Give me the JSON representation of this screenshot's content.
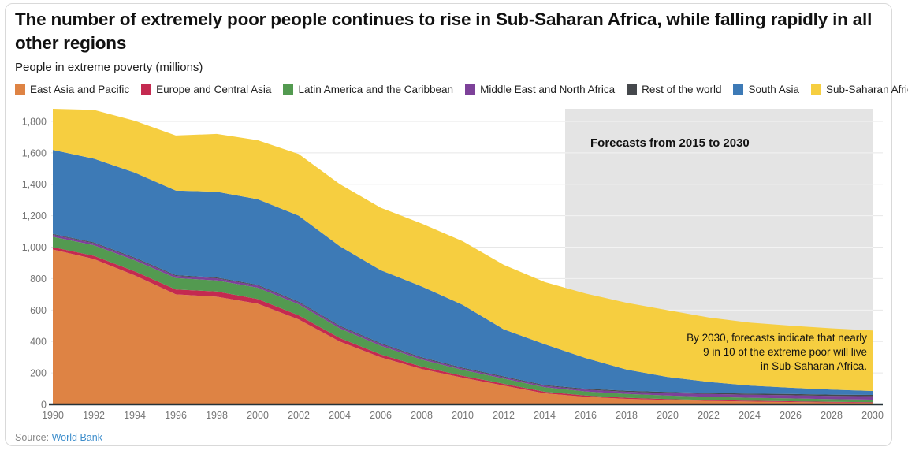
{
  "header": {
    "title": "The number of extremely poor people continues to rise in Sub-Saharan Africa, while falling rapidly in all other regions",
    "subtitle": "People in extreme poverty (millions)"
  },
  "footer": {
    "source_label": "Source:",
    "source_link": "World Bank"
  },
  "chart_data": {
    "type": "area",
    "stacked": true,
    "title": "The number of extremely poor people continues to rise in Sub-Saharan Africa, while falling rapidly in all other regions",
    "ylabel": "People in extreme poverty (millions)",
    "xlabel": "",
    "x": [
      1990,
      1992,
      1994,
      1996,
      1998,
      2000,
      2002,
      2004,
      2006,
      2008,
      2010,
      2012,
      2014,
      2016,
      2018,
      2020,
      2022,
      2024,
      2026,
      2028,
      2030
    ],
    "x_tick_labels": [
      "1990",
      "1992",
      "1994",
      "1996",
      "1998",
      "2000",
      "2002",
      "2004",
      "2006",
      "2008",
      "2010",
      "2012",
      "2014",
      "2016",
      "2018",
      "2020",
      "2022",
      "2024",
      "2026",
      "2028",
      "2030"
    ],
    "y_ticks": [
      0,
      200,
      400,
      600,
      800,
      1000,
      1200,
      1400,
      1600,
      1800
    ],
    "y_tick_labels": [
      "0",
      "200",
      "400",
      "600",
      "800",
      "1,000",
      "1,200",
      "1,400",
      "1,600",
      "1,800"
    ],
    "ylim": [
      0,
      1880
    ],
    "grid": true,
    "legend_position": "top",
    "series": [
      {
        "name": "East Asia and Pacific",
        "color": "#DE8344",
        "values": [
          985,
          925,
          820,
          700,
          685,
          640,
          540,
          400,
          300,
          225,
          170,
          120,
          70,
          48,
          35,
          28,
          22,
          18,
          15,
          12,
          10
        ]
      },
      {
        "name": "Europe and Central Asia",
        "color": "#C42A50",
        "values": [
          15,
          20,
          26,
          31,
          33,
          30,
          26,
          22,
          18,
          15,
          12,
          11,
          10,
          8,
          7,
          6,
          6,
          5,
          5,
          4,
          4
        ]
      },
      {
        "name": "Latin America and the Caribbean",
        "color": "#539A50",
        "values": [
          66,
          67,
          70,
          72,
          70,
          72,
          70,
          62,
          55,
          45,
          37,
          33,
          29,
          26,
          24,
          22,
          20,
          19,
          18,
          17,
          16
        ]
      },
      {
        "name": "Middle East and North Africa",
        "color": "#7D4199",
        "values": [
          13,
          13,
          13,
          14,
          14,
          13,
          12,
          12,
          11,
          10,
          9,
          9,
          9,
          12,
          14,
          16,
          18,
          19,
          20,
          21,
          22
        ]
      },
      {
        "name": "Rest of the world",
        "color": "#45484C",
        "values": [
          5,
          5,
          5,
          5,
          5,
          5,
          5,
          5,
          5,
          5,
          5,
          5,
          5,
          6,
          6,
          7,
          7,
          7,
          8,
          8,
          8
        ]
      },
      {
        "name": "South Asia",
        "color": "#3D7AB6",
        "values": [
          535,
          533,
          540,
          538,
          545,
          545,
          547,
          505,
          465,
          450,
          400,
          300,
          260,
          195,
          135,
          95,
          70,
          52,
          40,
          32,
          25
        ]
      },
      {
        "name": "Sub-Saharan Africa",
        "color": "#F6CE40",
        "values": [
          283,
          310,
          330,
          350,
          368,
          375,
          392,
          395,
          397,
          400,
          405,
          410,
          395,
          410,
          425,
          425,
          410,
          400,
          395,
          390,
          385
        ]
      }
    ],
    "forecast_region": {
      "label": "Forecasts from 2015 to 2030",
      "start": 2015,
      "end": 2030,
      "box_color": "#E4E4E4"
    },
    "annotation": {
      "lines": [
        "By 2030, forecasts indicate that nearly",
        "9 in 10 of the extreme poor will live",
        "in Sub-Saharan Africa."
      ]
    },
    "axis_color": "#263238",
    "grid_color": "#E7E7E7",
    "tick_label_color": "#757575"
  }
}
